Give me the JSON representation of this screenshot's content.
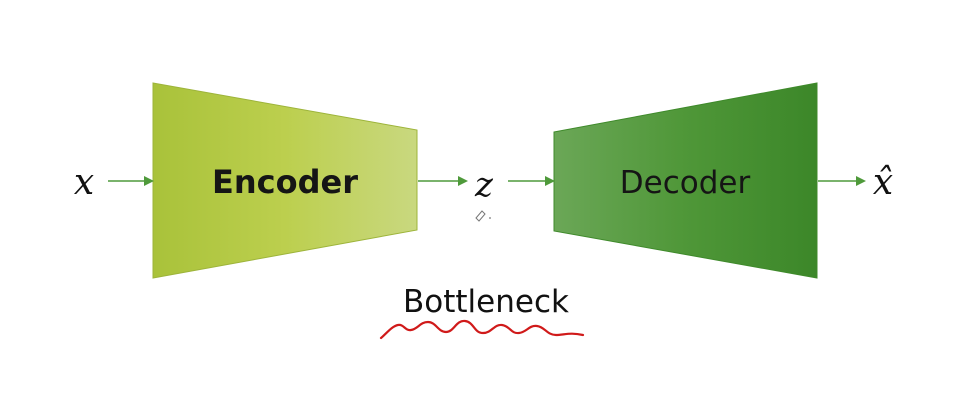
{
  "diagram": {
    "input_symbol": "x",
    "latent_symbol": "z",
    "output_symbol": "x̂",
    "encoder": {
      "label": "Encoder",
      "color_light": "#c6d77a",
      "color_dark": "#a9c23a"
    },
    "decoder": {
      "label": "Decoder",
      "color_light": "#6aa655",
      "color_dark": "#3f8a2b"
    },
    "bottleneck_label": "Bottleneck",
    "arrow_color": "#4f9a3b",
    "annotation_color": "#d01a1a"
  }
}
